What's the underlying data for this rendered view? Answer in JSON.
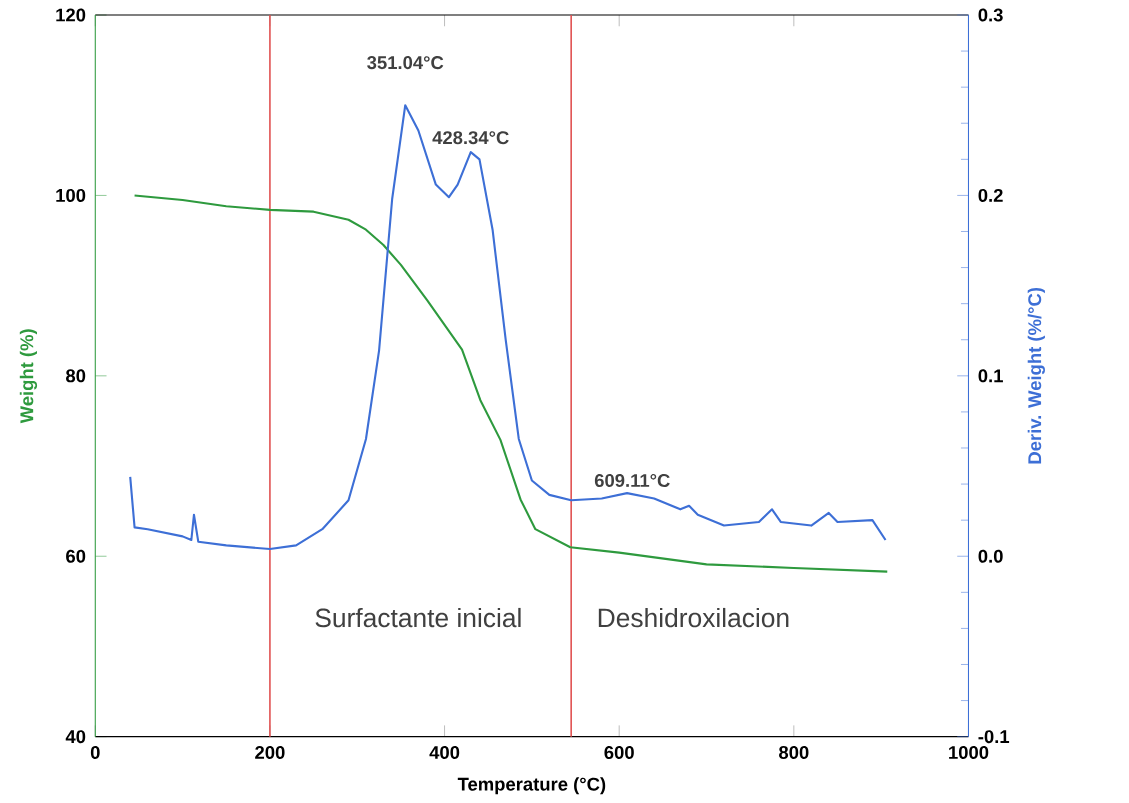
{
  "chart_data": {
    "type": "line",
    "xlabel": "Temperature (°C)",
    "ylabel": "Weight (%)",
    "y2label": "Deriv. Weight (%/°C)",
    "xlim": [
      0,
      1000
    ],
    "xticks": [
      0,
      200,
      400,
      600,
      800,
      1000
    ],
    "ylim": [
      40,
      120
    ],
    "yticks": [
      40,
      60,
      80,
      100,
      120
    ],
    "y2lim": [
      -0.1,
      0.3
    ],
    "y2ticks": [
      -0.1,
      {
        "value": 0,
        "label": "0.0"
      },
      0.1,
      0.2,
      0.3
    ],
    "marker": "none",
    "line_style": "solid",
    "grid": false,
    "series": [
      {
        "color": "#2e9a3e",
        "x": [
          45,
          100,
          150,
          200,
          250,
          290,
          310,
          330,
          350,
          380,
          420,
          441,
          464,
          487,
          504,
          544,
          600,
          700,
          800,
          907
        ],
        "values": [
          100.0,
          99.5,
          98.8,
          98.4,
          98.2,
          97.3,
          96.2,
          94.5,
          92.3,
          88.4,
          82.9,
          77.3,
          72.9,
          66.3,
          63.0,
          61.0,
          60.4,
          59.1,
          58.7,
          58.3
        ]
      },
      {
        "color": "#3d6fd6",
        "axis": "y2",
        "x": [
          40,
          45,
          60,
          100,
          110,
          113,
          118,
          150,
          200,
          230,
          260,
          290,
          310,
          325,
          340,
          355,
          370,
          390,
          405,
          415,
          430,
          440,
          455,
          470,
          485,
          500,
          520,
          545,
          580,
          609,
          640,
          670,
          680,
          690,
          720,
          760,
          775,
          785,
          820,
          840,
          850,
          890,
          905
        ],
        "values": [
          0.044,
          0.016,
          0.015,
          0.011,
          0.009,
          0.023,
          0.008,
          0.006,
          0.004,
          0.006,
          0.015,
          0.031,
          0.065,
          0.114,
          0.198,
          0.25,
          0.236,
          0.206,
          0.199,
          0.206,
          0.224,
          0.22,
          0.181,
          0.12,
          0.065,
          0.042,
          0.034,
          0.031,
          0.032,
          0.035,
          0.032,
          0.026,
          0.028,
          0.023,
          0.017,
          0.019,
          0.026,
          0.019,
          0.017,
          0.024,
          0.019,
          0.02,
          0.009
        ]
      }
    ],
    "ref_lines": [
      {
        "axis": "x",
        "value": 200,
        "color": "#e05050"
      },
      {
        "axis": "x",
        "value": 545,
        "color": "#e05050"
      }
    ],
    "annotations": [
      "351.04°C",
      "428.34°C",
      "609.11°C",
      "Surfactante inicial",
      "Deshidroxilacion"
    ]
  }
}
